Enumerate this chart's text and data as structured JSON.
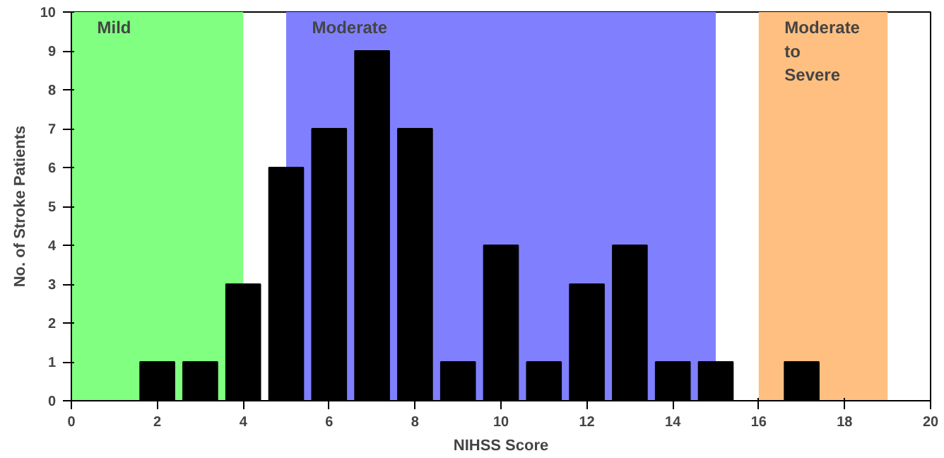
{
  "chart_data": {
    "type": "bar",
    "xlabel": "NIHSS Score",
    "ylabel": "No. of Stroke Patients",
    "x": [
      2,
      3,
      4,
      5,
      6,
      7,
      8,
      9,
      10,
      11,
      12,
      13,
      14,
      15,
      17
    ],
    "values": [
      1,
      1,
      3,
      6,
      7,
      9,
      7,
      1,
      4,
      1,
      3,
      4,
      1,
      1,
      1
    ],
    "color": "#000000",
    "xlim": [
      0,
      20
    ],
    "xticks": [
      0,
      2,
      4,
      6,
      8,
      10,
      12,
      14,
      16,
      18,
      20
    ],
    "ylim": [
      0,
      10
    ],
    "yticks": [
      0,
      1,
      2,
      3,
      4,
      5,
      6,
      7,
      8,
      9,
      10
    ],
    "bands": [
      {
        "axis": "x",
        "from": 0,
        "to": 4,
        "label": "Mild",
        "color": "#80ff80"
      },
      {
        "axis": "x",
        "from": 5,
        "to": 15,
        "label": "Moderate",
        "color": "#8080ff"
      },
      {
        "axis": "x",
        "from": 16,
        "to": 19,
        "label": "Moderate\nto\nSevere",
        "color": "#ffbf80"
      }
    ],
    "grid": false
  }
}
